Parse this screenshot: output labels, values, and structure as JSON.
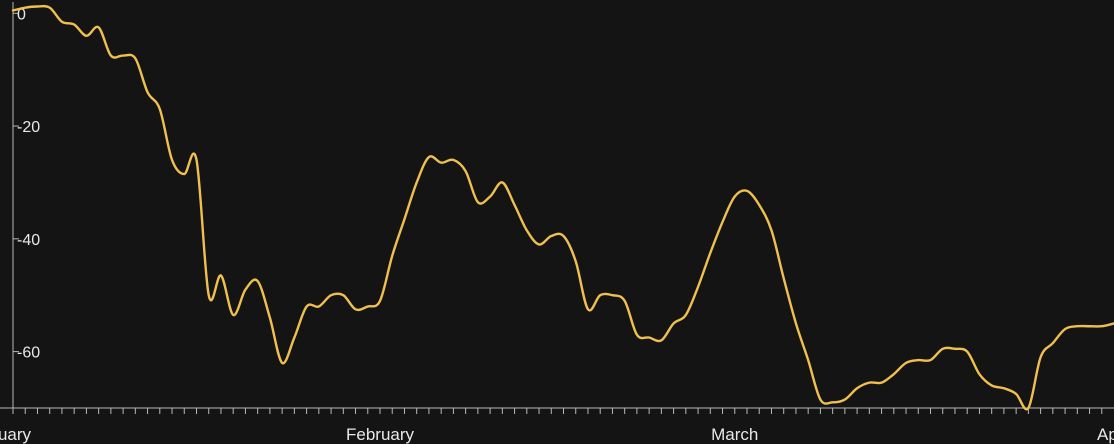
{
  "theme": {
    "background": "#141414",
    "axis_color": "#b9b9b9",
    "text_color": "#e8e8e8",
    "line_color": "#f0c04e"
  },
  "chart_data": {
    "type": "line",
    "title": "",
    "xlabel": "",
    "ylabel": "",
    "grid": false,
    "legend": "none",
    "ylim": [
      -70,
      2
    ],
    "xlim": [
      "2024-01-02",
      "2024-04-01"
    ],
    "x_ticks": [
      {
        "date": "2024-01-01",
        "label": "January"
      },
      {
        "date": "2024-02-01",
        "label": "February"
      },
      {
        "date": "2024-03-01",
        "label": "March"
      },
      {
        "date": "2024-04-01",
        "label": "April"
      }
    ],
    "y_ticks": [
      0,
      -20,
      -40,
      -60
    ],
    "series": [
      {
        "x": [
          "2024-01-02",
          "2024-01-03",
          "2024-01-04",
          "2024-01-05",
          "2024-01-06",
          "2024-01-07",
          "2024-01-08",
          "2024-01-09",
          "2024-01-10",
          "2024-01-11",
          "2024-01-12",
          "2024-01-13",
          "2024-01-14",
          "2024-01-15",
          "2024-01-16",
          "2024-01-17",
          "2024-01-18",
          "2024-01-19",
          "2024-01-20",
          "2024-01-21",
          "2024-01-22",
          "2024-01-23",
          "2024-01-24",
          "2024-01-25",
          "2024-01-26",
          "2024-01-27",
          "2024-01-28",
          "2024-01-29",
          "2024-01-30",
          "2024-01-31",
          "2024-02-01",
          "2024-02-02",
          "2024-02-03",
          "2024-02-04",
          "2024-02-05",
          "2024-02-06",
          "2024-02-07",
          "2024-02-08",
          "2024-02-09",
          "2024-02-10",
          "2024-02-11",
          "2024-02-12",
          "2024-02-13",
          "2024-02-14",
          "2024-02-15",
          "2024-02-16",
          "2024-02-17",
          "2024-02-18",
          "2024-02-19",
          "2024-02-20",
          "2024-02-21",
          "2024-02-22",
          "2024-02-23",
          "2024-02-24",
          "2024-02-25",
          "2024-02-26",
          "2024-02-27",
          "2024-02-28",
          "2024-02-29",
          "2024-03-01",
          "2024-03-02",
          "2024-03-03",
          "2024-03-04",
          "2024-03-05",
          "2024-03-06",
          "2024-03-07",
          "2024-03-08",
          "2024-03-09",
          "2024-03-10",
          "2024-03-11",
          "2024-03-12",
          "2024-03-13",
          "2024-03-14",
          "2024-03-15",
          "2024-03-16",
          "2024-03-17",
          "2024-03-18",
          "2024-03-19",
          "2024-03-20",
          "2024-03-21",
          "2024-03-22",
          "2024-03-23",
          "2024-03-24",
          "2024-03-25",
          "2024-03-26",
          "2024-03-27",
          "2024-03-28",
          "2024-03-29",
          "2024-03-30",
          "2024-03-31",
          "2024-04-01"
        ],
        "values": [
          0.5,
          1.0,
          1.2,
          1.0,
          -1.5,
          -2.0,
          -4.0,
          -2.5,
          -7.5,
          -7.5,
          -8.0,
          -14.0,
          -17.0,
          -26.0,
          -28.5,
          -26.0,
          -50.0,
          -46.5,
          -53.5,
          -49.0,
          -47.5,
          -54.0,
          -62.0,
          -57.5,
          -52.0,
          -52.0,
          -50.0,
          -50.0,
          -52.5,
          -52.0,
          -51.0,
          -43.0,
          -36.5,
          -30.0,
          -25.5,
          -26.5,
          -26.0,
          -28.0,
          -33.5,
          -32.5,
          -30.0,
          -34.0,
          -38.5,
          -41.0,
          -39.5,
          -39.5,
          -44.0,
          -52.5,
          -50.0,
          -50.0,
          -51.0,
          -57.0,
          -57.5,
          -58.0,
          -55.0,
          -53.5,
          -48.5,
          -42.5,
          -37.0,
          -32.5,
          -31.5,
          -34.0,
          -38.5,
          -47.0,
          -55.0,
          -61.5,
          -68.5,
          -69.0,
          -68.5,
          -66.5,
          -65.5,
          -65.5,
          -64.0,
          -62.0,
          -61.5,
          -61.5,
          -59.5,
          -59.5,
          -60.0,
          -64.0,
          -66.0,
          -66.5,
          -67.5,
          -70.0,
          -61.0,
          -58.5,
          -56.0,
          -55.5,
          -55.5,
          -55.5,
          -55.0
        ]
      }
    ]
  }
}
